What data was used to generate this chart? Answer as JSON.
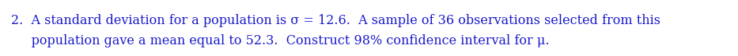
{
  "line1": "2.  A standard deviation for a population is σ = 12.6.  A sample of 36 observations selected from this",
  "line2": "     population gave a mean equal to 52.3.  Construct 98% confidence interval for μ.",
  "text_color": "#1a1acd",
  "background_color": "#ffffff",
  "font_size": 11.5,
  "fig_width": 9.33,
  "fig_height": 0.72,
  "dpi": 100
}
